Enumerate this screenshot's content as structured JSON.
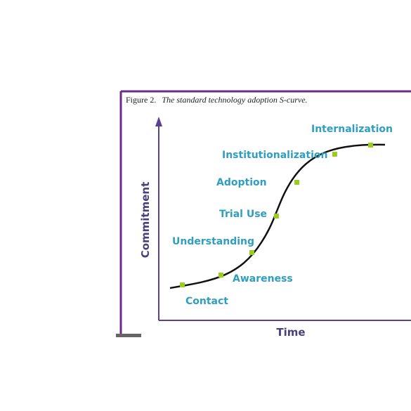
{
  "figure": {
    "caption_number": "Figure 2.",
    "caption_title": "The standard technology adoption S-curve.",
    "y_axis_label": "Commitment",
    "x_axis_label": "Time"
  },
  "stages": [
    {
      "name": "Contact"
    },
    {
      "name": "Awareness"
    },
    {
      "name": "Understanding"
    },
    {
      "name": "Trial Use"
    },
    {
      "name": "Adoption"
    },
    {
      "name": "Institutionalization"
    },
    {
      "name": "Internalization"
    }
  ],
  "colors": {
    "frame": "#6b2b86",
    "axis": "#5b3f91",
    "curve": "#111111",
    "marker": "#9ccc1c",
    "stage_label": "#2e9fc1",
    "axis_label": "#4a3f7a",
    "base_bar": "#666666"
  }
}
